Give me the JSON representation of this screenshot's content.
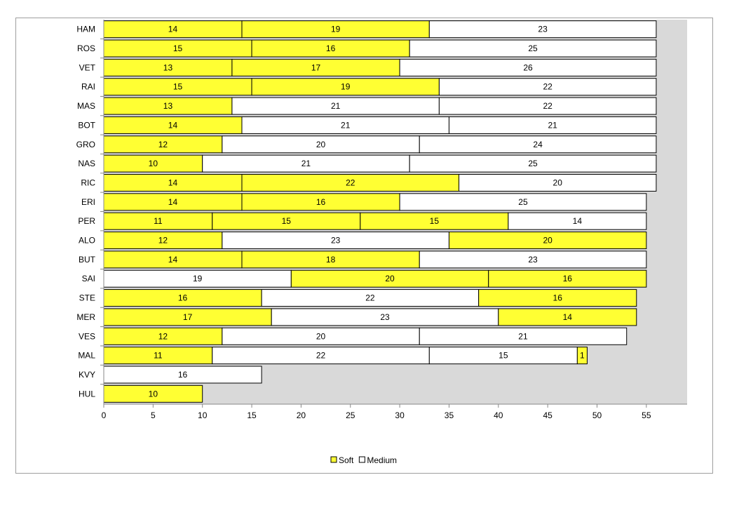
{
  "chart_data": {
    "type": "bar",
    "orientation": "horizontal",
    "stacked": true,
    "title": "",
    "xlabel": "",
    "ylabel": "",
    "xlim": [
      0,
      59
    ],
    "x_ticks": [
      0,
      5,
      10,
      15,
      20,
      25,
      30,
      35,
      40,
      45,
      50,
      55
    ],
    "plot_background": "#d9d9d9",
    "legend_position": "bottom",
    "legend": [
      {
        "name": "Soft",
        "color": "#ffff33"
      },
      {
        "name": "Medium",
        "color": "#ffffff"
      }
    ],
    "categories": [
      "HAM",
      "ROS",
      "VET",
      "RAI",
      "MAS",
      "BOT",
      "GRO",
      "NAS",
      "RIC",
      "ERI",
      "PER",
      "ALO",
      "BUT",
      "SAI",
      "STE",
      "MER",
      "VES",
      "MAL",
      "KVY",
      "HUL"
    ],
    "stints": [
      [
        {
          "c": "Soft",
          "v": 14
        },
        {
          "c": "Soft",
          "v": 19
        },
        {
          "c": "Medium",
          "v": 23
        }
      ],
      [
        {
          "c": "Soft",
          "v": 15
        },
        {
          "c": "Soft",
          "v": 16
        },
        {
          "c": "Medium",
          "v": 25
        }
      ],
      [
        {
          "c": "Soft",
          "v": 13
        },
        {
          "c": "Soft",
          "v": 17
        },
        {
          "c": "Medium",
          "v": 26
        }
      ],
      [
        {
          "c": "Soft",
          "v": 15
        },
        {
          "c": "Soft",
          "v": 19
        },
        {
          "c": "Medium",
          "v": 22
        }
      ],
      [
        {
          "c": "Soft",
          "v": 13
        },
        {
          "c": "Medium",
          "v": 21
        },
        {
          "c": "Medium",
          "v": 22
        }
      ],
      [
        {
          "c": "Soft",
          "v": 14
        },
        {
          "c": "Medium",
          "v": 21
        },
        {
          "c": "Medium",
          "v": 21
        }
      ],
      [
        {
          "c": "Soft",
          "v": 12
        },
        {
          "c": "Medium",
          "v": 20
        },
        {
          "c": "Medium",
          "v": 24
        }
      ],
      [
        {
          "c": "Soft",
          "v": 10
        },
        {
          "c": "Medium",
          "v": 21
        },
        {
          "c": "Medium",
          "v": 25
        }
      ],
      [
        {
          "c": "Soft",
          "v": 14
        },
        {
          "c": "Soft",
          "v": 22
        },
        {
          "c": "Medium",
          "v": 20
        }
      ],
      [
        {
          "c": "Soft",
          "v": 14
        },
        {
          "c": "Soft",
          "v": 16
        },
        {
          "c": "Medium",
          "v": 25
        }
      ],
      [
        {
          "c": "Soft",
          "v": 11
        },
        {
          "c": "Soft",
          "v": 15
        },
        {
          "c": "Soft",
          "v": 15
        },
        {
          "c": "Medium",
          "v": 14
        }
      ],
      [
        {
          "c": "Soft",
          "v": 12
        },
        {
          "c": "Medium",
          "v": 23
        },
        {
          "c": "Soft",
          "v": 20
        }
      ],
      [
        {
          "c": "Soft",
          "v": 14
        },
        {
          "c": "Soft",
          "v": 18
        },
        {
          "c": "Medium",
          "v": 23
        }
      ],
      [
        {
          "c": "Medium",
          "v": 19
        },
        {
          "c": "Soft",
          "v": 20
        },
        {
          "c": "Soft",
          "v": 16
        }
      ],
      [
        {
          "c": "Soft",
          "v": 16
        },
        {
          "c": "Medium",
          "v": 22
        },
        {
          "c": "Soft",
          "v": 16
        }
      ],
      [
        {
          "c": "Soft",
          "v": 17
        },
        {
          "c": "Medium",
          "v": 23
        },
        {
          "c": "Soft",
          "v": 14
        }
      ],
      [
        {
          "c": "Soft",
          "v": 12
        },
        {
          "c": "Medium",
          "v": 20
        },
        {
          "c": "Medium",
          "v": 21
        }
      ],
      [
        {
          "c": "Soft",
          "v": 11
        },
        {
          "c": "Medium",
          "v": 22
        },
        {
          "c": "Medium",
          "v": 15
        },
        {
          "c": "Soft",
          "v": 1
        }
      ],
      [
        {
          "c": "Medium",
          "v": 16
        }
      ],
      [
        {
          "c": "Soft",
          "v": 10
        }
      ]
    ]
  }
}
